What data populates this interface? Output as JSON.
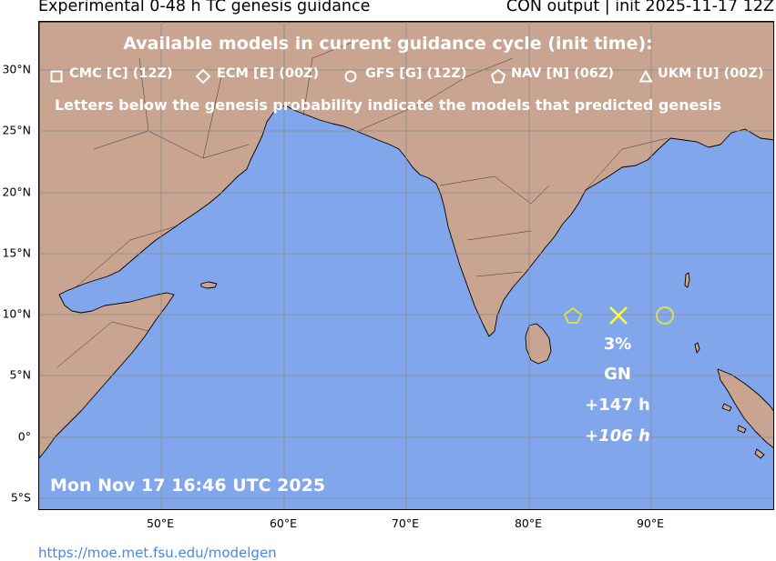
{
  "header": {
    "title_left": "Experimental 0-48 h TC genesis guidance",
    "title_right": "CON output | init 2025-11-17 12Z"
  },
  "legend": {
    "heading": "Available models in current guidance cycle (init time):",
    "models": [
      {
        "symbol": "square",
        "label": "CMC [C] (12Z)"
      },
      {
        "symbol": "diamond",
        "label": "ECM [E] (00Z)"
      },
      {
        "symbol": "circle",
        "label": "GFS [G] (12Z)"
      },
      {
        "symbol": "pentagon",
        "label": "NAV [N] (06Z)"
      },
      {
        "symbol": "triangle",
        "label": "UKM [U] (00Z)"
      }
    ],
    "note": "Letters below the genesis probability indicate the models that predicted genesis"
  },
  "axes": {
    "lat_ticks": [
      "30°N",
      "25°N",
      "20°N",
      "15°N",
      "10°N",
      "5°N",
      "0°",
      "5°S"
    ],
    "lon_ticks": [
      "50°E",
      "60°E",
      "70°E",
      "80°E",
      "90°E"
    ],
    "lat_values": [
      30,
      25,
      20,
      15,
      10,
      5,
      0,
      -5
    ],
    "lon_values": [
      50,
      60,
      70,
      80,
      90
    ],
    "lon_range": [
      40,
      100
    ],
    "lat_range": [
      -6,
      34
    ]
  },
  "storm": {
    "lon": 87.3,
    "lat": 10,
    "probability": "3%",
    "models": "GN",
    "lead_time_1": "+147 h",
    "lead_time_2": "+106 h",
    "member_markers": [
      {
        "model": "NAV",
        "symbol": "pentagon",
        "lon": 83.6,
        "lat": 10
      },
      {
        "model": "GFS",
        "symbol": "circle",
        "lon": 91.0,
        "lat": 10
      }
    ],
    "marker_color": "#ffff33",
    "member_color": "#d7e04a"
  },
  "timestamp": "Mon Nov 17 16:46 UTC 2025",
  "footer": {
    "url": "https://moe.met.fsu.edu/modelgen"
  },
  "colors": {
    "ocean": "#81a6ec",
    "land": "#c9a491",
    "grid": "#8c8c8c",
    "link": "#4a86e8"
  }
}
